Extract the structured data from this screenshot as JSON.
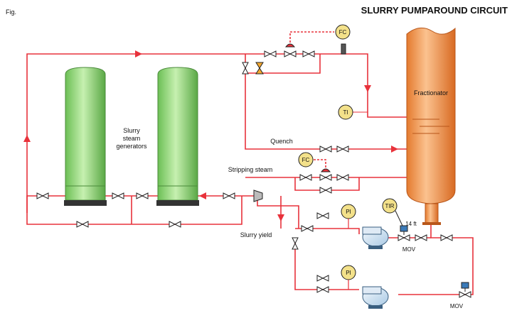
{
  "title": "SLURRY PUMPAROUND CIRCUIT",
  "fig_label": "Fig.",
  "labels": {
    "fractionator": "Fractionator",
    "generators": [
      "Slurry",
      "steam",
      "generators"
    ],
    "quench": "Quench",
    "stripping_steam": "Stripping steam",
    "slurry_yield": "Slurry yield",
    "line_size": "14 ft",
    "mov1": "MOV",
    "mov2": "MOV"
  },
  "instruments": {
    "fc_top": "FC",
    "ti": "TI",
    "fc_strip": "FC",
    "tir": "TIR",
    "pi_1": "PI",
    "pi_2": "PI"
  },
  "colors": {
    "line": "#e8323b",
    "vessel_green": "#a6e08c",
    "vessel_orange": "#f6a660",
    "instrument": "#f3e18a",
    "pump": "#cfe3f4"
  }
}
